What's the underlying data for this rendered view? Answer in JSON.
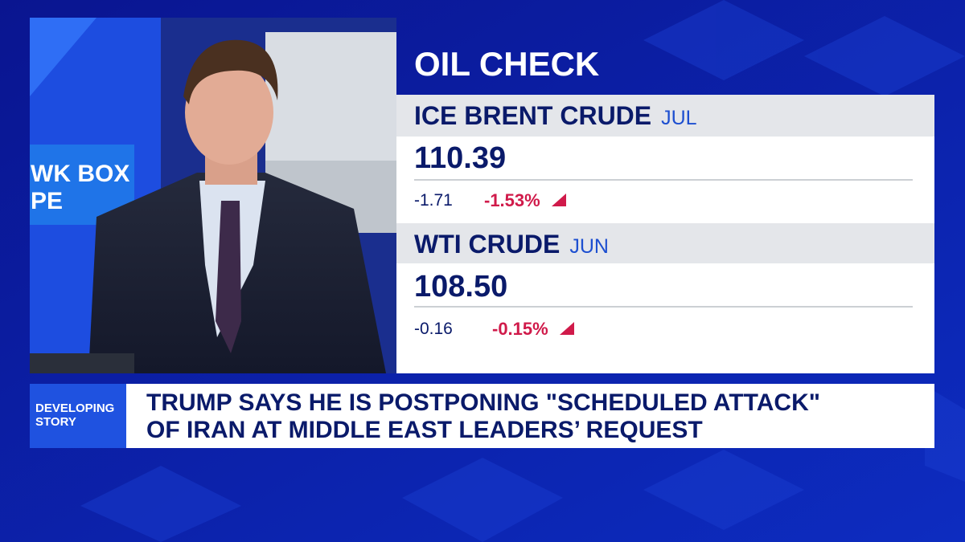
{
  "sign": {
    "lines": [
      "WK BOX",
      "PE"
    ]
  },
  "panel": {
    "title": "OIL CHECK",
    "items": [
      {
        "name": "ICE BRENT CRUDE",
        "contract": "JUL",
        "price": "110.39",
        "change": "-1.71",
        "percent": "-1.53%"
      },
      {
        "name": "WTI CRUDE",
        "contract": "JUN",
        "price": "108.50",
        "change": "-0.16",
        "percent": "-0.15%"
      }
    ]
  },
  "ticker": {
    "label": [
      "DEVELOPING",
      "STORY"
    ],
    "headline": [
      "TRUMP SAYS HE IS POSTPONING \"SCHEDULED ATTACK\"",
      "OF IRAN AT MIDDLE EAST LEADERS’ REQUEST"
    ]
  }
}
